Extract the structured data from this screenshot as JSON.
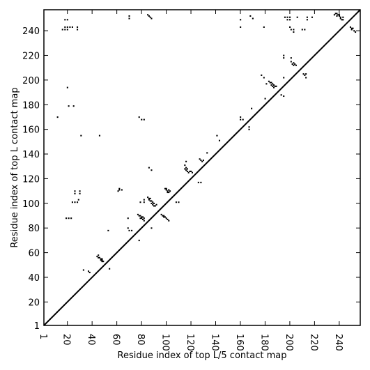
{
  "chart_data": {
    "type": "scatter",
    "title": "",
    "xlabel": "Residue index of top L/5 contact map",
    "ylabel": "Residue index of top L contact map",
    "xlim": [
      1,
      257
    ],
    "ylim": [
      1,
      257
    ],
    "x_ticks": [
      1,
      20,
      40,
      60,
      80,
      100,
      120,
      140,
      160,
      180,
      200,
      220,
      240
    ],
    "y_ticks": [
      1,
      20,
      40,
      60,
      80,
      100,
      120,
      140,
      160,
      180,
      200,
      220,
      240
    ],
    "x_tick_rotation_deg": -90,
    "diagonal": [
      [
        1,
        1
      ],
      [
        257,
        257
      ]
    ],
    "grid": false,
    "marker_color": "#000000",
    "series": [
      {
        "values_desc": "Upper-left triangle: contacts from top L contact map",
        "points": [
          [
            12,
            170
          ],
          [
            16,
            241
          ],
          [
            18,
            241
          ],
          [
            18,
            249
          ],
          [
            18,
            243
          ],
          [
            20,
            241
          ],
          [
            20,
            243
          ],
          [
            20,
            249
          ],
          [
            20,
            194
          ],
          [
            19,
            88
          ],
          [
            21,
            88
          ],
          [
            23,
            88
          ],
          [
            21,
            179
          ],
          [
            25,
            179
          ],
          [
            22,
            243
          ],
          [
            24,
            243
          ],
          [
            24,
            101
          ],
          [
            26,
            101
          ],
          [
            28,
            101
          ],
          [
            26,
            110
          ],
          [
            26,
            108
          ],
          [
            28,
            243
          ],
          [
            28,
            241
          ],
          [
            30,
            110
          ],
          [
            30,
            108
          ],
          [
            29,
            103
          ],
          [
            31,
            155
          ],
          [
            33,
            46
          ],
          [
            37,
            45
          ],
          [
            38,
            44
          ],
          [
            46,
            155
          ],
          [
            44,
            57
          ],
          [
            45,
            58
          ],
          [
            45,
            56
          ],
          [
            46,
            56
          ],
          [
            47,
            55
          ],
          [
            48,
            55
          ],
          [
            47,
            54
          ],
          [
            48,
            54
          ],
          [
            49,
            53
          ],
          [
            48,
            53
          ],
          [
            53,
            78
          ],
          [
            54,
            47
          ],
          [
            61,
            110
          ],
          [
            62,
            111
          ],
          [
            62,
            112
          ],
          [
            64,
            111
          ],
          [
            69,
            88
          ],
          [
            69,
            80
          ],
          [
            70,
            78
          ],
          [
            72,
            78
          ],
          [
            70,
            252
          ],
          [
            70,
            250
          ],
          [
            77,
            91
          ],
          [
            78,
            90
          ],
          [
            79,
            90
          ],
          [
            80,
            89
          ],
          [
            80,
            88
          ],
          [
            81,
            89
          ],
          [
            81,
            87
          ],
          [
            82,
            88
          ],
          [
            82,
            86
          ],
          [
            79,
            88
          ],
          [
            78,
            70
          ],
          [
            78,
            170
          ],
          [
            80,
            168
          ],
          [
            82,
            168
          ],
          [
            79,
            101
          ],
          [
            82,
            101
          ],
          [
            82,
            103
          ],
          [
            85,
            105
          ],
          [
            86,
            104
          ],
          [
            87,
            104
          ],
          [
            86,
            103
          ],
          [
            87,
            102
          ],
          [
            88,
            102
          ],
          [
            89,
            101
          ],
          [
            88,
            100
          ],
          [
            89,
            99
          ],
          [
            90,
            100
          ],
          [
            90,
            98
          ],
          [
            91,
            98
          ],
          [
            92,
            99
          ],
          [
            85,
            253
          ],
          [
            86,
            252
          ],
          [
            87,
            251
          ],
          [
            88,
            250
          ],
          [
            86,
            129
          ],
          [
            88,
            127
          ],
          [
            88,
            80
          ],
          [
            96,
            91
          ],
          [
            97,
            90
          ],
          [
            98,
            90
          ],
          [
            98,
            89
          ],
          [
            99,
            89
          ],
          [
            100,
            88
          ],
          [
            101,
            87
          ],
          [
            102,
            86
          ],
          [
            99,
            112
          ],
          [
            100,
            112
          ],
          [
            100,
            111
          ],
          [
            101,
            110
          ],
          [
            102,
            111
          ],
          [
            102,
            109
          ],
          [
            101,
            109
          ],
          [
            103,
            110
          ],
          [
            108,
            101
          ],
          [
            110,
            101
          ],
          [
            115,
            131
          ],
          [
            116,
            129
          ],
          [
            115,
            128
          ],
          [
            117,
            128
          ],
          [
            116,
            127
          ],
          [
            117,
            126
          ],
          [
            119,
            126
          ],
          [
            118,
            125
          ],
          [
            120,
            126
          ],
          [
            121,
            125
          ],
          [
            116,
            134
          ],
          [
            126,
            117
          ],
          [
            128,
            117
          ],
          [
            127,
            136
          ],
          [
            128,
            135
          ],
          [
            130,
            135
          ],
          [
            129,
            134
          ],
          [
            133,
            141
          ],
          [
            141,
            155
          ],
          [
            143,
            151
          ],
          [
            160,
            170
          ],
          [
            160,
            168
          ],
          [
            162,
            168
          ],
          [
            160,
            249
          ],
          [
            160,
            243
          ],
          [
            167,
            162
          ],
          [
            167,
            160
          ],
          [
            169,
            177
          ],
          [
            168,
            252
          ],
          [
            170,
            250
          ],
          [
            177,
            204
          ],
          [
            179,
            243
          ],
          [
            179,
            202
          ],
          [
            180,
            185
          ],
          [
            181,
            197
          ],
          [
            183,
            199
          ],
          [
            184,
            198
          ],
          [
            185,
            198
          ],
          [
            185,
            196
          ],
          [
            186,
            197
          ],
          [
            186,
            195
          ],
          [
            187,
            196
          ],
          [
            187,
            194
          ],
          [
            188,
            195
          ],
          [
            189,
            195
          ],
          [
            193,
            188
          ],
          [
            195,
            187
          ],
          [
            195,
            202
          ],
          [
            195,
            218
          ],
          [
            195,
            220
          ],
          [
            196,
            251
          ],
          [
            198,
            249
          ],
          [
            198,
            251
          ],
          [
            200,
            251
          ],
          [
            200,
            249
          ],
          [
            200,
            243
          ],
          [
            201,
            218
          ],
          [
            201,
            215
          ],
          [
            202,
            213
          ],
          [
            203,
            214
          ],
          [
            203,
            212
          ],
          [
            204,
            213
          ],
          [
            205,
            212
          ],
          [
            201,
            241
          ],
          [
            203,
            241
          ],
          [
            203,
            239
          ],
          [
            206,
            251
          ],
          [
            210,
            241
          ],
          [
            212,
            241
          ],
          [
            211,
            205
          ],
          [
            212,
            204
          ],
          [
            213,
            205
          ],
          [
            213,
            202
          ],
          [
            214,
            249
          ],
          [
            214,
            251
          ],
          [
            218,
            251
          ],
          [
            236,
            253
          ],
          [
            237,
            254
          ],
          [
            238,
            254
          ],
          [
            238,
            252
          ],
          [
            239,
            253
          ],
          [
            240,
            253
          ],
          [
            240,
            252
          ],
          [
            241,
            251
          ],
          [
            241,
            250
          ],
          [
            242,
            249
          ],
          [
            243,
            251
          ],
          [
            243,
            249
          ],
          [
            249,
            243
          ],
          [
            250,
            242
          ],
          [
            250,
            241
          ],
          [
            251,
            242
          ],
          [
            252,
            240
          ],
          [
            253,
            239
          ]
        ]
      }
    ]
  }
}
